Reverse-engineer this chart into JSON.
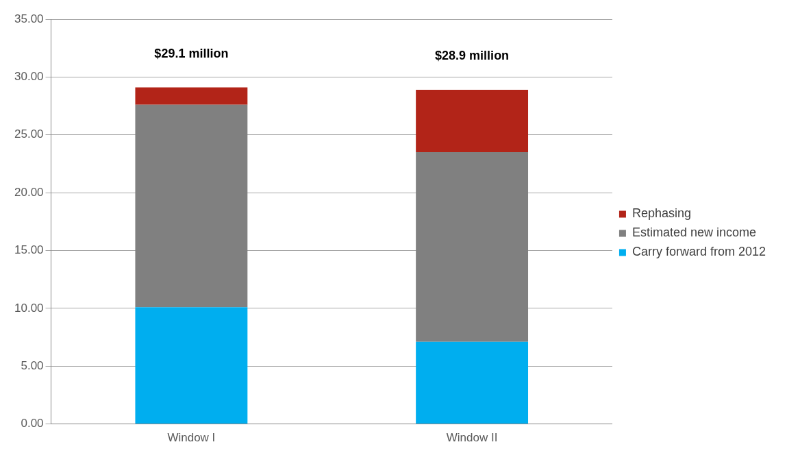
{
  "chart_data": {
    "type": "bar",
    "stacked": true,
    "categories": [
      "Window I",
      "Window II"
    ],
    "series": [
      {
        "name": "Carry forward from 2012",
        "color": "#00aeef",
        "values": [
          10.1,
          7.1
        ]
      },
      {
        "name": "Estimated new income",
        "color": "#808080",
        "values": [
          17.5,
          16.4
        ]
      },
      {
        "name": "Rephasing",
        "color": "#b22418",
        "values": [
          1.5,
          5.4
        ]
      }
    ],
    "totals": [
      "$29.1 million",
      "$28.9 million"
    ],
    "ylim": [
      0,
      35
    ],
    "yticks": [
      {
        "value": 0,
        "label": "0.00"
      },
      {
        "value": 5,
        "label": "5.00"
      },
      {
        "value": 10,
        "label": "10.00"
      },
      {
        "value": 15,
        "label": "15.00"
      },
      {
        "value": 20,
        "label": "20.00"
      },
      {
        "value": 25,
        "label": "25.00"
      },
      {
        "value": 30,
        "label": "30.00"
      },
      {
        "value": 35,
        "label": "35.00"
      }
    ],
    "grid": "y",
    "legend": "right"
  }
}
